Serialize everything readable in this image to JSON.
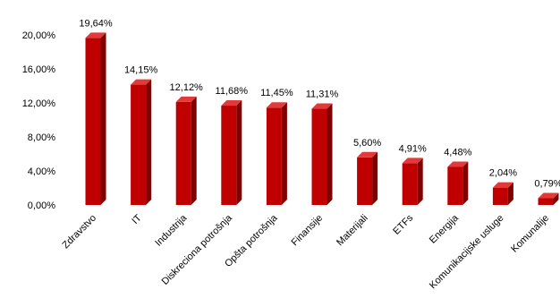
{
  "chart_data": {
    "type": "bar",
    "title": "",
    "xlabel": "",
    "ylabel": "",
    "ylim": [
      0,
      20
    ],
    "y_ticks": [
      "0,00%",
      "4,00%",
      "8,00%",
      "12,00%",
      "16,00%",
      "20,00%"
    ],
    "y_tick_values": [
      0,
      4,
      8,
      12,
      16,
      20
    ],
    "grid": false,
    "legend": "none",
    "bar_color": "#c00000",
    "bar_side_color": "#7f0000",
    "bar_top_color": "#e03a3a",
    "categories": [
      "Zdravstvo",
      "IT",
      "Industrija",
      "Diskreciona potrošnja",
      "Opšta potrošnja",
      "Finansije",
      "Materijali",
      "ETFs",
      "Energija",
      "Komunikacijske usluge",
      "Komunalije"
    ],
    "values": [
      19.64,
      14.15,
      12.12,
      11.68,
      11.45,
      11.31,
      5.6,
      4.91,
      4.48,
      2.04,
      0.79
    ],
    "data_labels": [
      "19,64%",
      "14,15%",
      "12,12%",
      "11,68%",
      "11,45%",
      "11,31%",
      "5,60%",
      "4,91%",
      "4,48%",
      "2,04%",
      "0,79%"
    ]
  }
}
